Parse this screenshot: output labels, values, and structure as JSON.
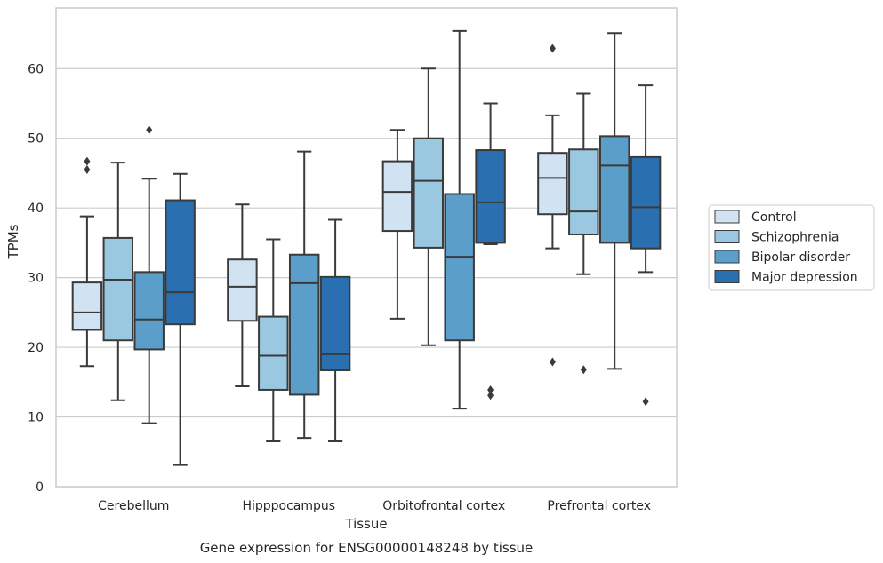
{
  "chart_data": {
    "type": "box",
    "caption": "Gene expression for ENSG00000148248 by tissue",
    "xlabel": "Tissue",
    "ylabel": "TPMs",
    "ylim": [
      0,
      68.7
    ],
    "yticks": [
      0,
      10,
      20,
      30,
      40,
      50,
      60
    ],
    "grid": "y",
    "legend_position": "right",
    "categories": [
      "Cerebellum",
      "Hipppocampus",
      "Orbitofrontal cortex",
      "Prefrontal cortex"
    ],
    "series": [
      {
        "name": "Control",
        "color": "#d1e2f2",
        "boxes": [
          {
            "whislo": 17.3,
            "q1": 22.5,
            "med": 25.0,
            "q3": 29.3,
            "whishi": 38.8,
            "fliers": [
              45.5,
              46.7
            ]
          },
          {
            "whislo": 14.4,
            "q1": 23.8,
            "med": 28.7,
            "q3": 32.6,
            "whishi": 40.5,
            "fliers": []
          },
          {
            "whislo": 24.1,
            "q1": 36.7,
            "med": 42.3,
            "q3": 46.7,
            "whishi": 51.2,
            "fliers": []
          },
          {
            "whislo": 34.2,
            "q1": 39.1,
            "med": 44.3,
            "q3": 47.9,
            "whishi": 53.3,
            "fliers": [
              17.9,
              62.9
            ]
          }
        ]
      },
      {
        "name": "Schizophrenia",
        "color": "#9ac8e0",
        "boxes": [
          {
            "whislo": 12.4,
            "q1": 21.0,
            "med": 29.7,
            "q3": 35.7,
            "whishi": 46.5,
            "fliers": []
          },
          {
            "whislo": 6.5,
            "q1": 13.9,
            "med": 18.8,
            "q3": 24.4,
            "whishi": 35.5,
            "fliers": []
          },
          {
            "whislo": 20.3,
            "q1": 34.3,
            "med": 43.9,
            "q3": 50.0,
            "whishi": 60.0,
            "fliers": []
          },
          {
            "whislo": 30.5,
            "q1": 36.2,
            "med": 39.5,
            "q3": 48.4,
            "whishi": 56.4,
            "fliers": [
              16.8
            ]
          }
        ]
      },
      {
        "name": "Bipolar disorder",
        "color": "#5b9ec9",
        "boxes": [
          {
            "whislo": 9.1,
            "q1": 19.7,
            "med": 24.0,
            "q3": 30.8,
            "whishi": 44.2,
            "fliers": [
              51.2
            ]
          },
          {
            "whislo": 7.0,
            "q1": 13.2,
            "med": 29.2,
            "q3": 33.3,
            "whishi": 48.1,
            "fliers": []
          },
          {
            "whislo": 11.2,
            "q1": 21.0,
            "med": 33.0,
            "q3": 42.0,
            "whishi": 65.4,
            "fliers": []
          },
          {
            "whislo": 16.9,
            "q1": 35.0,
            "med": 46.1,
            "q3": 50.3,
            "whishi": 65.1,
            "fliers": []
          }
        ]
      },
      {
        "name": "Major depression",
        "color": "#2a6faf",
        "boxes": [
          {
            "whislo": 3.1,
            "q1": 23.3,
            "med": 27.9,
            "q3": 41.1,
            "whishi": 44.9,
            "fliers": []
          },
          {
            "whislo": 6.5,
            "q1": 16.7,
            "med": 19.0,
            "q3": 30.1,
            "whishi": 38.3,
            "fliers": []
          },
          {
            "whislo": 34.8,
            "q1": 35.0,
            "med": 40.8,
            "q3": 48.3,
            "whishi": 55.0,
            "fliers": [
              13.1,
              13.9
            ]
          },
          {
            "whislo": 30.8,
            "q1": 34.2,
            "med": 40.1,
            "q3": 47.3,
            "whishi": 57.6,
            "fliers": [
              12.2
            ]
          }
        ]
      }
    ]
  },
  "style": {
    "line_color": "#3a3a3a",
    "grid_color": "#cccccc",
    "frame_color": "#cccccc"
  }
}
